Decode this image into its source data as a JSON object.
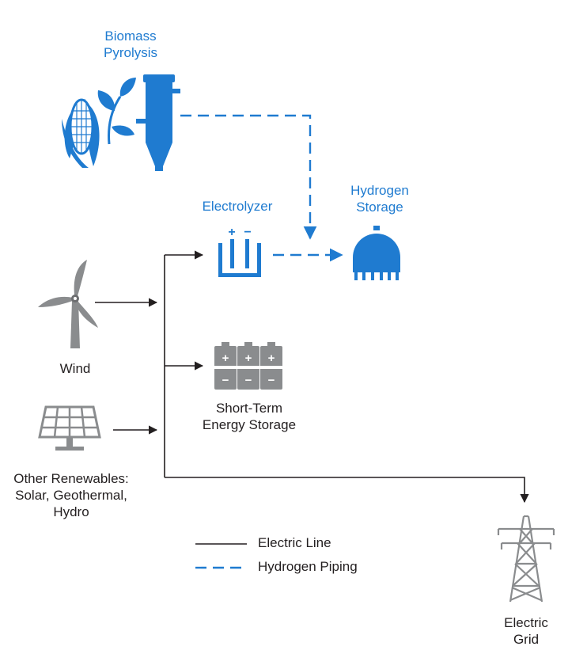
{
  "labels": {
    "biomass": [
      "Biomass",
      "Pyrolysis"
    ],
    "electrolyzer": "Electrolyzer",
    "hydrogen_storage": [
      "Hydrogen",
      "Storage"
    ],
    "wind": "Wind",
    "short_term": [
      "Short-Term",
      "Energy Storage"
    ],
    "other_renewables": [
      "Other Renewables:",
      "Solar, Geothermal,",
      "Hydro"
    ],
    "electric_grid": [
      "Electric",
      "Grid"
    ]
  },
  "electrolyzer_terminals": {
    "plus": "+",
    "minus": "−"
  },
  "battery_signs": {
    "plus": "+",
    "minus": "−"
  },
  "legend": {
    "electric_line": "Electric Line",
    "hydrogen_piping": "Hydrogen Piping"
  },
  "colors": {
    "hydrogen_blue": "#1f7bd0",
    "line_dark": "#231f20",
    "icon_gray": "#8a8c8e",
    "icon_dark_gray": "#6d6e71"
  },
  "icons": [
    "corn-plant-icon",
    "pyrolysis-reactor-icon",
    "electrolyzer-icon",
    "hydrogen-tank-icon",
    "wind-turbine-icon",
    "solar-panel-icon",
    "battery-icon",
    "transmission-tower-icon"
  ]
}
